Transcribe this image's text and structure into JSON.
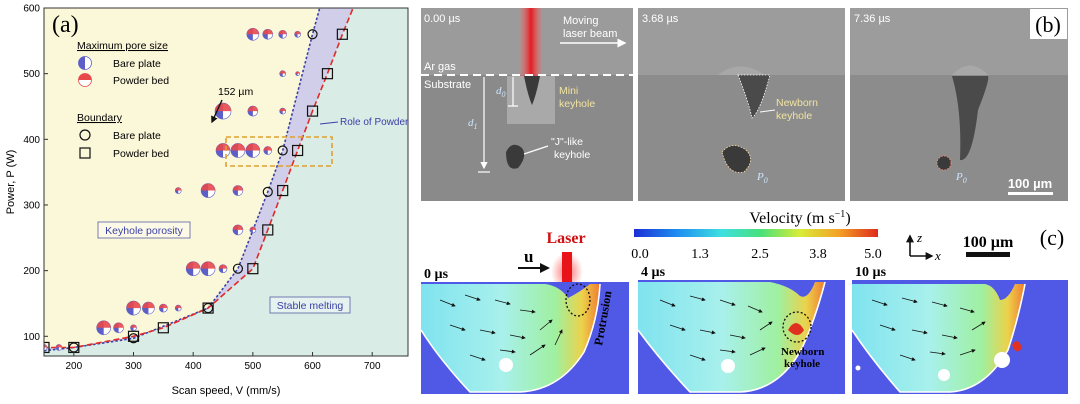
{
  "panel_a": {
    "label": "(a)",
    "legend": {
      "size_title": "Maximum pore size",
      "size_items": [
        "Bare plate",
        "Powder bed"
      ],
      "boundary_title": "Boundary",
      "boundary_items": [
        "Bare plate",
        "Powder bed"
      ]
    },
    "annotation_152": "152 µm",
    "region_keyhole": "Keyhole porosity",
    "region_stable": "Stable melting",
    "role_of_powder": "Role of Powder",
    "colors": {
      "bare": "#5b5fc7",
      "powder": "#e8484a",
      "stable_bg": "#d9ece6",
      "keyhole_bg": "#fbf7d9",
      "band": "#cfcbea"
    }
  },
  "chart_data": {
    "type": "scatter",
    "xlabel": "Scan speed, V (mm/s)",
    "ylabel": "Power, P (W)",
    "xlim": [
      150,
      760
    ],
    "ylim": [
      70,
      600
    ],
    "xticks": [
      200,
      300,
      400,
      500,
      600,
      700
    ],
    "yticks": [
      100,
      200,
      300,
      400,
      500,
      600
    ],
    "boundary_bare": [
      [
        200,
        83
      ],
      [
        300,
        97
      ],
      [
        425,
        143
      ],
      [
        475,
        203
      ],
      [
        525,
        320
      ],
      [
        550,
        383
      ],
      [
        600,
        560
      ]
    ],
    "boundary_powder": [
      [
        150,
        83
      ],
      [
        200,
        83
      ],
      [
        300,
        100
      ],
      [
        350,
        113
      ],
      [
        425,
        143
      ],
      [
        500,
        203
      ],
      [
        525,
        262
      ],
      [
        550,
        322
      ],
      [
        575,
        383
      ],
      [
        600,
        443
      ],
      [
        625,
        500
      ],
      [
        650,
        560
      ]
    ],
    "pores": [
      {
        "x": 150,
        "y": 83,
        "r": 3
      },
      {
        "x": 175,
        "y": 83,
        "r": 3
      },
      {
        "x": 250,
        "y": 113,
        "r": 7
      },
      {
        "x": 275,
        "y": 113,
        "r": 5
      },
      {
        "x": 300,
        "y": 113,
        "r": 3
      },
      {
        "x": 300,
        "y": 143,
        "r": 7
      },
      {
        "x": 325,
        "y": 143,
        "r": 6
      },
      {
        "x": 350,
        "y": 143,
        "r": 4
      },
      {
        "x": 375,
        "y": 143,
        "r": 3
      },
      {
        "x": 400,
        "y": 203,
        "r": 7
      },
      {
        "x": 425,
        "y": 203,
        "r": 7
      },
      {
        "x": 450,
        "y": 203,
        "r": 4
      },
      {
        "x": 475,
        "y": 262,
        "r": 5
      },
      {
        "x": 500,
        "y": 262,
        "r": 3
      },
      {
        "x": 375,
        "y": 322,
        "r": 3
      },
      {
        "x": 425,
        "y": 322,
        "r": 7
      },
      {
        "x": 475,
        "y": 322,
        "r": 5
      },
      {
        "x": 450,
        "y": 383,
        "r": 7
      },
      {
        "x": 475,
        "y": 383,
        "r": 7
      },
      {
        "x": 500,
        "y": 383,
        "r": 7
      },
      {
        "x": 525,
        "y": 383,
        "r": 4
      },
      {
        "x": 450,
        "y": 443,
        "r": 8
      },
      {
        "x": 500,
        "y": 443,
        "r": 5
      },
      {
        "x": 550,
        "y": 443,
        "r": 3
      },
      {
        "x": 550,
        "y": 500,
        "r": 3
      },
      {
        "x": 575,
        "y": 500,
        "r": 2
      },
      {
        "x": 500,
        "y": 560,
        "r": 6
      },
      {
        "x": 525,
        "y": 560,
        "r": 5
      },
      {
        "x": 550,
        "y": 560,
        "r": 4
      },
      {
        "x": 575,
        "y": 560,
        "r": 3
      }
    ]
  },
  "panel_b": {
    "label": "(b)",
    "frames": [
      {
        "time": "0.00 µs"
      },
      {
        "time": "3.68 µs"
      },
      {
        "time": "7.36 µs"
      }
    ],
    "moving_laser": [
      "Moving",
      "laser beam"
    ],
    "ar_gas": "Ar gas",
    "substrate": "Substrate",
    "d0": "d",
    "d0_sub": "0",
    "d1": "d",
    "d1_sub": "1",
    "mini_keyhole": [
      "Mini",
      "keyhole"
    ],
    "j_keyhole": [
      "\"J\"-like",
      "keyhole"
    ],
    "newborn": [
      "Newborn",
      "keyhole"
    ],
    "p0_a": "P",
    "p0_b": "P",
    "p0_sub": "0",
    "scale": "100 µm"
  },
  "panel_c": {
    "label": "(c)",
    "colorbar_title": "Velocity (m s",
    "colorbar_sup": "−1",
    "colorbar_close": ")",
    "colorbar_ticks": [
      "0.0",
      "1.3",
      "2.5",
      "3.8",
      "5.0"
    ],
    "laser": "Laser",
    "u": "u",
    "times": [
      "0 µs",
      "4 µs",
      "10 µs"
    ],
    "protrusion": "Protrusion",
    "newborn": [
      "Newborn",
      "keyhole"
    ],
    "axis_z": "z",
    "axis_x": "x",
    "scale": "100 µm"
  }
}
